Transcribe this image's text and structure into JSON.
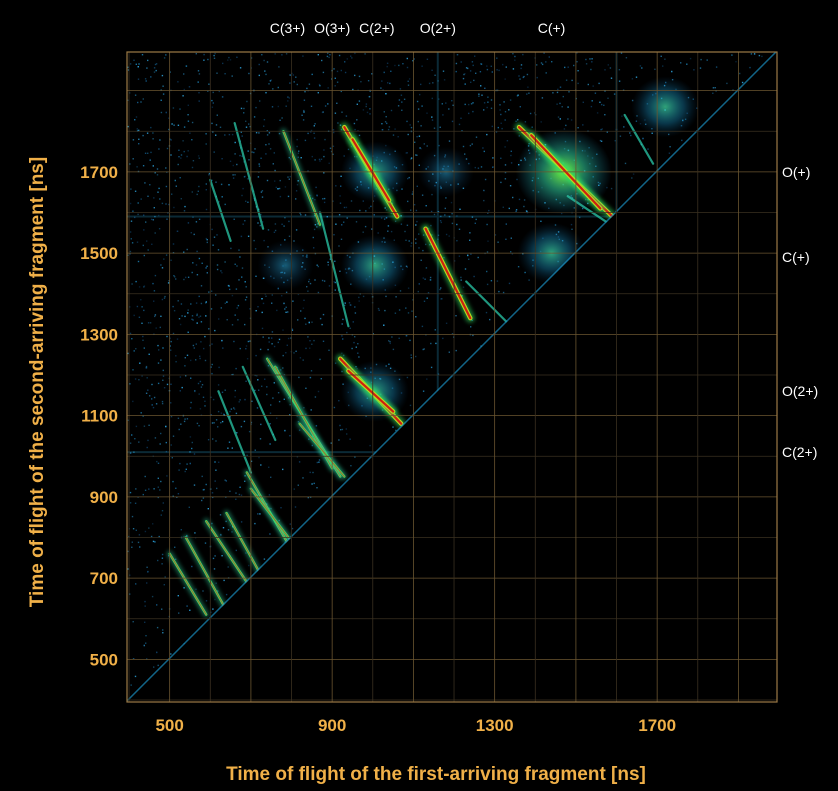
{
  "chart_data": {
    "type": "heatmap",
    "title": "",
    "xlabel": "Time of flight of the first-arriving fragment [ns]",
    "ylabel": "Time of flight of the second-arriving fragment [ns]",
    "xlim": [
      395,
      1995
    ],
    "ylim": [
      395,
      1995
    ],
    "x_ticks": [
      500,
      900,
      1300,
      1700
    ],
    "y_ticks": [
      500,
      700,
      900,
      1100,
      1300,
      1500,
      1700
    ],
    "grid": true,
    "top_annotations": [
      {
        "text": "C(3+)",
        "value": 790
      },
      {
        "text": "O(3+)",
        "value": 900
      },
      {
        "text": "C(2+)",
        "value": 1010
      },
      {
        "text": "O(2+)",
        "value": 1160
      },
      {
        "text": "C(+)",
        "value": 1440
      }
    ],
    "right_annotations": [
      {
        "text": "O(+)",
        "value": 1700
      },
      {
        "text": "C(+)",
        "value": 1490
      },
      {
        "text": "O(2+)",
        "value": 1160
      },
      {
        "text": "C(2+)",
        "value": 1010
      }
    ],
    "colorscale": [
      "#0a2a4a",
      "#1a8fc0",
      "#2fd0b0",
      "#30e060",
      "#c8c020",
      "#d02010"
    ],
    "coincidence_lines": [
      {
        "x": [
          1360,
          1590
        ],
        "y": [
          1810,
          1590
        ],
        "intensity": "high"
      },
      {
        "x": [
          1390,
          1560
        ],
        "y": [
          1790,
          1610
        ],
        "intensity": "high"
      },
      {
        "x": [
          930,
          1060
        ],
        "y": [
          1810,
          1590
        ],
        "intensity": "high"
      },
      {
        "x": [
          950,
          1040
        ],
        "y": [
          1780,
          1630
        ],
        "intensity": "high"
      },
      {
        "x": [
          1130,
          1240
        ],
        "y": [
          1560,
          1340
        ],
        "intensity": "high"
      },
      {
        "x": [
          920,
          1070
        ],
        "y": [
          1240,
          1080
        ],
        "intensity": "high"
      },
      {
        "x": [
          940,
          1050
        ],
        "y": [
          1210,
          1110
        ],
        "intensity": "high"
      },
      {
        "x": [
          780,
          870
        ],
        "y": [
          1800,
          1570
        ],
        "intensity": "medium"
      },
      {
        "x": [
          740,
          920
        ],
        "y": [
          1240,
          950
        ],
        "intensity": "medium"
      },
      {
        "x": [
          760,
          900
        ],
        "y": [
          1220,
          970
        ],
        "intensity": "medium"
      },
      {
        "x": [
          820,
          930
        ],
        "y": [
          1080,
          950
        ],
        "intensity": "medium"
      },
      {
        "x": [
          690,
          800
        ],
        "y": [
          960,
          770
        ],
        "intensity": "medium"
      },
      {
        "x": [
          700,
          800
        ],
        "y": [
          920,
          790
        ],
        "intensity": "medium"
      },
      {
        "x": [
          640,
          740
        ],
        "y": [
          860,
          680
        ],
        "intensity": "medium"
      },
      {
        "x": [
          590,
          690
        ],
        "y": [
          840,
          690
        ],
        "intensity": "medium"
      },
      {
        "x": [
          540,
          640
        ],
        "y": [
          800,
          620
        ],
        "intensity": "medium"
      },
      {
        "x": [
          500,
          590
        ],
        "y": [
          760,
          610
        ],
        "intensity": "medium"
      },
      {
        "x": [
          870,
          940
        ],
        "y": [
          1600,
          1320
        ],
        "intensity": "low"
      },
      {
        "x": [
          660,
          730
        ],
        "y": [
          1820,
          1560
        ],
        "intensity": "low"
      },
      {
        "x": [
          600,
          650
        ],
        "y": [
          1680,
          1530
        ],
        "intensity": "low"
      },
      {
        "x": [
          680,
          760
        ],
        "y": [
          1220,
          1040
        ],
        "intensity": "low"
      },
      {
        "x": [
          620,
          700
        ],
        "y": [
          1160,
          960
        ],
        "intensity": "low"
      },
      {
        "x": [
          1480,
          1600
        ],
        "y": [
          1640,
          1560
        ],
        "intensity": "low"
      },
      {
        "x": [
          1620,
          1690
        ],
        "y": [
          1840,
          1720
        ],
        "intensity": "low"
      },
      {
        "x": [
          1230,
          1330
        ],
        "y": [
          1430,
          1330
        ],
        "intensity": "low"
      }
    ],
    "hot_spots": [
      {
        "x": 1470,
        "y": 1700,
        "intensity": "high"
      },
      {
        "x": 1005,
        "y": 1700,
        "intensity": "medium"
      },
      {
        "x": 1005,
        "y": 1470,
        "intensity": "medium"
      },
      {
        "x": 1180,
        "y": 1700,
        "intensity": "low"
      },
      {
        "x": 785,
        "y": 1470,
        "intensity": "low"
      },
      {
        "x": 1005,
        "y": 1160,
        "intensity": "medium"
      },
      {
        "x": 1440,
        "y": 1500,
        "intensity": "medium"
      },
      {
        "x": 1720,
        "y": 1860,
        "intensity": "medium"
      }
    ]
  }
}
